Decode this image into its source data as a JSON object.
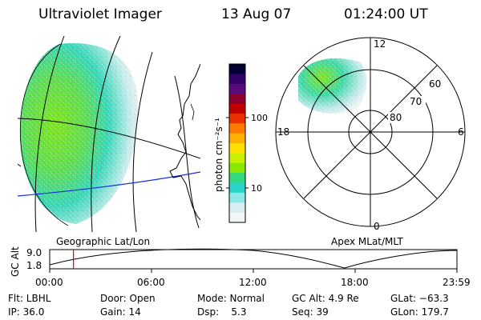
{
  "header": {
    "title": "Ultraviolet Imager",
    "date": "13 Aug 07",
    "time": "01:24:00 UT"
  },
  "colorbar": {
    "label": "photon cm⁻²s⁻¹",
    "ticks": [
      "100",
      "10"
    ],
    "colors": [
      "#000033",
      "#330066",
      "#5a0a7a",
      "#8b0030",
      "#c00000",
      "#e83000",
      "#ff7a00",
      "#ffb000",
      "#ffe000",
      "#c8f000",
      "#8ce800",
      "#33d880",
      "#2ad4c8",
      "#8ee8e8",
      "#d8eef0",
      "#f2f6f6"
    ]
  },
  "geo_panel": {
    "label": "Geographic Lat/Lon"
  },
  "polar_panel": {
    "label": "Apex MLat/MLT",
    "mlt_labels": {
      "top": "12",
      "left": "18",
      "right": "6",
      "bottom": "0"
    },
    "lat_labels": [
      "60",
      "70",
      "80"
    ]
  },
  "altitude_plot": {
    "ylabel": "GC Alt",
    "yticks": [
      "9.0",
      "1.8"
    ],
    "xticks": [
      "00:00",
      "06:00",
      "12:00",
      "18:00",
      "23:59"
    ],
    "marker_time_hours": 1.4
  },
  "footer": {
    "col1": [
      "Flt: LBHL",
      "IP: 36.0"
    ],
    "col2": [
      "Door: Open",
      "Gain: 14"
    ],
    "col3": [
      "Mode: Normal",
      "Dsp:    5.3"
    ],
    "col4": [
      "GC Alt: 4.9 Re",
      "Seq: 39"
    ],
    "col5": [
      "GLat: −63.3",
      "GLon: 179.7"
    ]
  }
}
